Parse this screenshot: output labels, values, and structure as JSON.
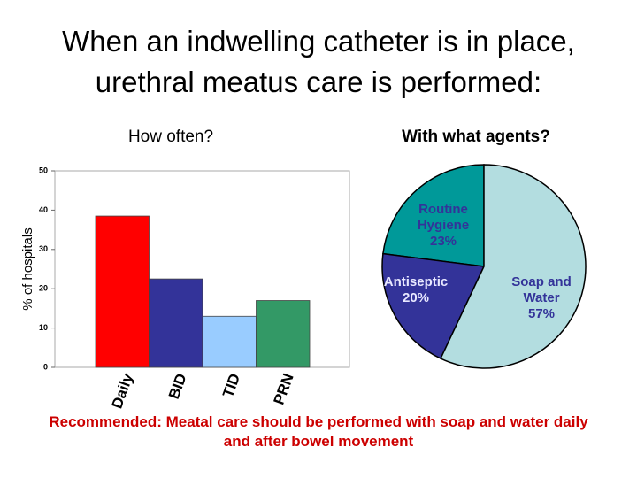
{
  "title": "When an indwelling catheter is in place, urethral meatus care is performed:",
  "footnote": "Recommended: Meatal care should be performed with soap and water daily and after bowel movement",
  "chart_data": [
    {
      "type": "bar",
      "title": "How often?",
      "ylabel": "% of hospitals",
      "categories": [
        "Daily",
        "BID",
        "TID",
        "PRN"
      ],
      "values": [
        38.5,
        22.5,
        13,
        17
      ],
      "colors": [
        "#ff0000",
        "#333399",
        "#99ccff",
        "#339966"
      ],
      "ylim": [
        0,
        50
      ],
      "yticks": [
        0,
        10,
        20,
        30,
        40,
        50
      ]
    },
    {
      "type": "pie",
      "title": "With what agents?",
      "labels": [
        "Routine Hygiene",
        "Antiseptic",
        "Soap and Water"
      ],
      "values": [
        23,
        20,
        57
      ],
      "value_labels": [
        "23%",
        "20%",
        "57%"
      ],
      "colors": [
        "#009999",
        "#333399",
        "#b3dde0"
      ]
    }
  ]
}
